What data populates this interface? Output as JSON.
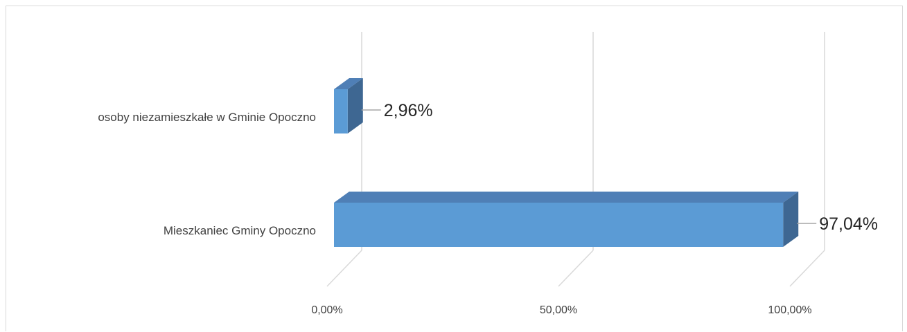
{
  "chart_data": {
    "type": "bar",
    "orientation": "horizontal",
    "style": "3d",
    "title": "",
    "xlabel": "",
    "ylabel": "",
    "categories": [
      "osoby niezamieszkałe w Gminie Opoczno",
      "Mieszkaniec Gminy Opoczno"
    ],
    "values": [
      2.96,
      97.04
    ],
    "data_labels": [
      "2,96%",
      "97,04%"
    ],
    "xlim": [
      0,
      100
    ],
    "x_ticks": [
      0,
      50,
      100
    ],
    "x_tick_labels": [
      "0,00%",
      "50,00%",
      "100,00%"
    ],
    "grid": true,
    "legend": "none",
    "colors": {
      "bar_front": "#5b9bd5",
      "bar_top": "#4f7fb6",
      "bar_side": "#3e6792",
      "gridline": "#d9d9d9",
      "text": "#404040"
    }
  }
}
